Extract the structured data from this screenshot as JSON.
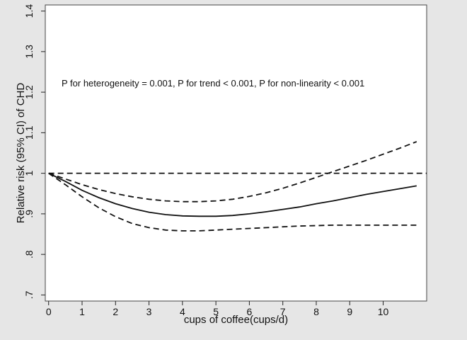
{
  "chart_data": {
    "type": "line",
    "title": "",
    "xlabel": "cups of coffee(cups/d)",
    "ylabel": "Relative risk (95% CI) of CHD",
    "annotation": "P for heterogeneity = 0.001, P for trend < 0.001, P for non-linearity < 0.001",
    "xlim": [
      -0.1,
      11.3
    ],
    "ylim": [
      0.685,
      1.415
    ],
    "x_ticks": [
      0,
      1,
      2,
      3,
      4,
      5,
      6,
      7,
      8,
      9,
      10
    ],
    "y_ticks": [
      0.7,
      0.8,
      0.9,
      1.0,
      1.1,
      1.2,
      1.3,
      1.4
    ],
    "y_tick_labels": [
      ".7",
      ".8",
      ".9",
      "1",
      "1.1",
      "1.2",
      "1.3",
      "1.4"
    ],
    "grid": false,
    "series": [
      {
        "style": "solid",
        "x": [
          0,
          0.5,
          1,
          1.5,
          2,
          2.5,
          3,
          3.5,
          4,
          4.5,
          5,
          5.5,
          6,
          6.5,
          7,
          7.5,
          8,
          8.5,
          9,
          9.5,
          10,
          10.5,
          11
        ],
        "y": [
          1.0,
          0.98,
          0.958,
          0.94,
          0.925,
          0.913,
          0.904,
          0.898,
          0.895,
          0.894,
          0.894,
          0.896,
          0.9,
          0.905,
          0.911,
          0.917,
          0.925,
          0.932,
          0.94,
          0.948,
          0.955,
          0.962,
          0.969
        ]
      },
      {
        "style": "dashed",
        "x": [
          0,
          0.5,
          1,
          1.5,
          2,
          2.5,
          3,
          3.5,
          4,
          4.5,
          5,
          5.5,
          6,
          6.5,
          7,
          7.5,
          8,
          8.5,
          9,
          9.5,
          10,
          10.5,
          11
        ],
        "y": [
          1.0,
          0.986,
          0.972,
          0.96,
          0.95,
          0.942,
          0.936,
          0.932,
          0.93,
          0.93,
          0.932,
          0.936,
          0.943,
          0.952,
          0.963,
          0.976,
          0.99,
          1.004,
          1.018,
          1.032,
          1.047,
          1.062,
          1.078
        ]
      },
      {
        "style": "dashed",
        "x": [
          0,
          0.5,
          1,
          1.5,
          2,
          2.5,
          3,
          3.5,
          4,
          4.5,
          5,
          5.5,
          6,
          6.5,
          7,
          7.5,
          8,
          8.5,
          9,
          9.5,
          10,
          10.5,
          11
        ],
        "y": [
          1.0,
          0.972,
          0.942,
          0.915,
          0.893,
          0.876,
          0.866,
          0.86,
          0.858,
          0.858,
          0.86,
          0.862,
          0.864,
          0.866,
          0.868,
          0.87,
          0.871,
          0.872,
          0.872,
          0.872,
          0.872,
          0.872,
          0.872
        ]
      },
      {
        "style": "dashed",
        "x": [
          0,
          11.3
        ],
        "y": [
          1.0,
          1.0
        ]
      }
    ]
  }
}
